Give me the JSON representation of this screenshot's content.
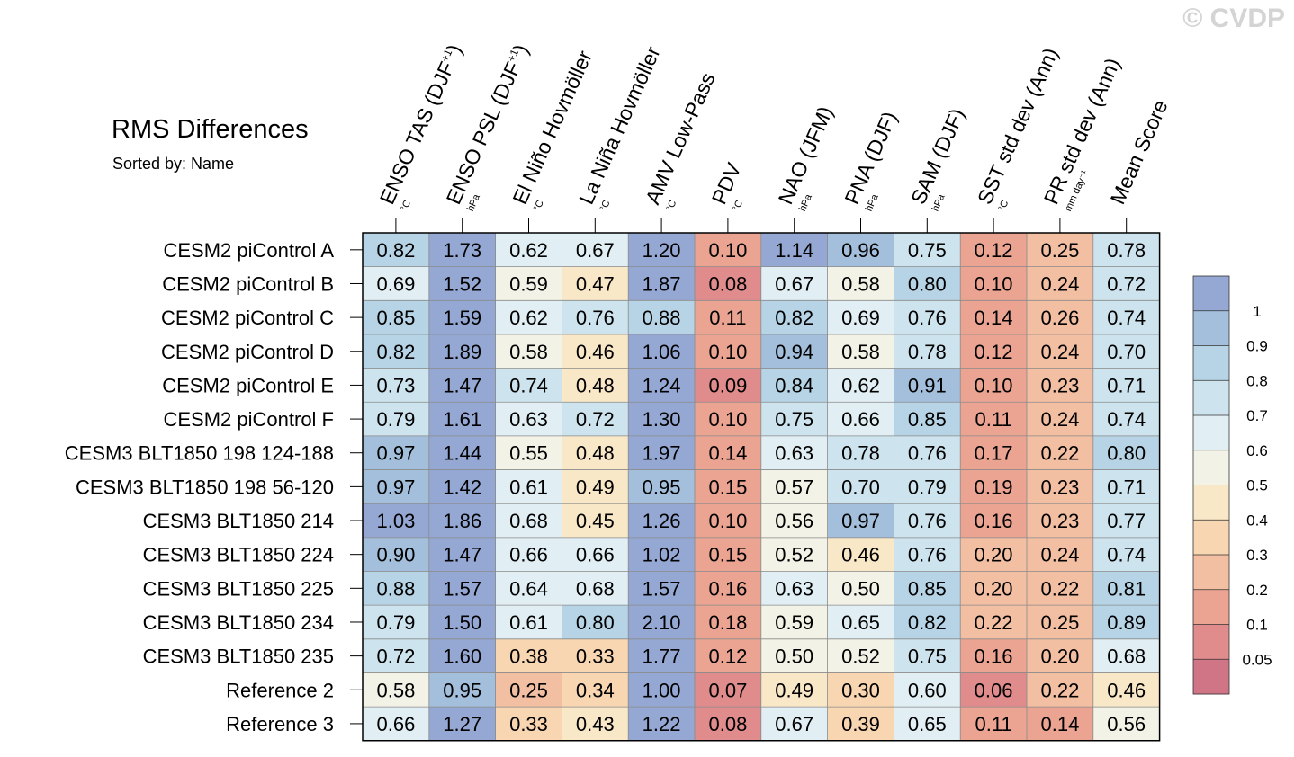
{
  "watermark": "© CVDP",
  "chart_data": {
    "type": "heatmap",
    "title": "RMS Differences",
    "subtitle": "Sorted by: Name",
    "columns": [
      {
        "label": "ENSO TAS (DJF",
        "sup": "+1",
        "tail": ")",
        "unit": "°C"
      },
      {
        "label": "ENSO PSL (DJF",
        "sup": "+1",
        "tail": ")",
        "unit": "hPa"
      },
      {
        "label": "El Niño Hovmöller",
        "sup": "",
        "tail": "",
        "unit": "°C"
      },
      {
        "label": "La Niña Hovmöller",
        "sup": "",
        "tail": "",
        "unit": "°C"
      },
      {
        "label": "AMV Low-Pass",
        "sup": "",
        "tail": "",
        "unit": "°C"
      },
      {
        "label": "PDV",
        "sup": "",
        "tail": "",
        "unit": "°C"
      },
      {
        "label": "NAO (JFM)",
        "sup": "",
        "tail": "",
        "unit": "hPa"
      },
      {
        "label": "PNA (DJF)",
        "sup": "",
        "tail": "",
        "unit": "hPa"
      },
      {
        "label": "SAM (DJF)",
        "sup": "",
        "tail": "",
        "unit": "hPa"
      },
      {
        "label": "SST std dev (Ann)",
        "sup": "",
        "tail": "",
        "unit": "°C"
      },
      {
        "label": "PR std dev (Ann)",
        "sup": "",
        "tail": "",
        "unit": "mm day⁻¹"
      },
      {
        "label": "Mean Score",
        "sup": "",
        "tail": "",
        "unit": ""
      }
    ],
    "rows": [
      "CESM2 piControl A",
      "CESM2 piControl B",
      "CESM2 piControl C",
      "CESM2 piControl D",
      "CESM2 piControl E",
      "CESM2 piControl F",
      "CESM3 BLT1850 198 124-188",
      "CESM3 BLT1850 198 56-120",
      "CESM3 BLT1850 214",
      "CESM3 BLT1850 224",
      "CESM3 BLT1850 225",
      "CESM3 BLT1850 234",
      "CESM3 BLT1850 235",
      "Reference 2",
      "Reference 3"
    ],
    "values": [
      [
        "0.82",
        "1.73",
        "0.62",
        "0.67",
        "1.20",
        "0.10",
        "1.14",
        "0.96",
        "0.75",
        "0.12",
        "0.25",
        "0.78"
      ],
      [
        "0.69",
        "1.52",
        "0.59",
        "0.47",
        "1.87",
        "0.08",
        "0.67",
        "0.58",
        "0.80",
        "0.10",
        "0.24",
        "0.72"
      ],
      [
        "0.85",
        "1.59",
        "0.62",
        "0.76",
        "0.88",
        "0.11",
        "0.82",
        "0.69",
        "0.76",
        "0.14",
        "0.26",
        "0.74"
      ],
      [
        "0.82",
        "1.89",
        "0.58",
        "0.46",
        "1.06",
        "0.10",
        "0.94",
        "0.58",
        "0.78",
        "0.12",
        "0.24",
        "0.70"
      ],
      [
        "0.73",
        "1.47",
        "0.74",
        "0.48",
        "1.24",
        "0.09",
        "0.84",
        "0.62",
        "0.91",
        "0.10",
        "0.23",
        "0.71"
      ],
      [
        "0.79",
        "1.61",
        "0.63",
        "0.72",
        "1.30",
        "0.10",
        "0.75",
        "0.66",
        "0.85",
        "0.11",
        "0.24",
        "0.74"
      ],
      [
        "0.97",
        "1.44",
        "0.55",
        "0.48",
        "1.97",
        "0.14",
        "0.63",
        "0.78",
        "0.76",
        "0.17",
        "0.22",
        "0.80"
      ],
      [
        "0.97",
        "1.42",
        "0.61",
        "0.49",
        "0.95",
        "0.15",
        "0.57",
        "0.70",
        "0.79",
        "0.19",
        "0.23",
        "0.71"
      ],
      [
        "1.03",
        "1.86",
        "0.68",
        "0.45",
        "1.26",
        "0.10",
        "0.56",
        "0.97",
        "0.76",
        "0.16",
        "0.23",
        "0.77"
      ],
      [
        "0.90",
        "1.47",
        "0.66",
        "0.66",
        "1.02",
        "0.15",
        "0.52",
        "0.46",
        "0.76",
        "0.20",
        "0.24",
        "0.74"
      ],
      [
        "0.88",
        "1.57",
        "0.64",
        "0.68",
        "1.57",
        "0.16",
        "0.63",
        "0.50",
        "0.85",
        "0.20",
        "0.22",
        "0.81"
      ],
      [
        "0.79",
        "1.50",
        "0.61",
        "0.80",
        "2.10",
        "0.18",
        "0.59",
        "0.65",
        "0.82",
        "0.22",
        "0.25",
        "0.89"
      ],
      [
        "0.72",
        "1.60",
        "0.38",
        "0.33",
        "1.77",
        "0.12",
        "0.50",
        "0.52",
        "0.75",
        "0.16",
        "0.20",
        "0.68"
      ],
      [
        "0.58",
        "0.95",
        "0.25",
        "0.34",
        "1.00",
        "0.07",
        "0.49",
        "0.30",
        "0.60",
        "0.06",
        "0.22",
        "0.46"
      ],
      [
        "0.66",
        "1.27",
        "0.33",
        "0.43",
        "1.22",
        "0.08",
        "0.67",
        "0.39",
        "0.65",
        "0.11",
        "0.14",
        "0.56"
      ]
    ],
    "colorbar": {
      "labels": [
        "1",
        "0.9",
        "0.8",
        "0.7",
        "0.6",
        "0.5",
        "0.4",
        "0.3",
        "0.2",
        "0.1",
        "0.05"
      ],
      "thresholds": [
        0.05,
        0.1,
        0.2,
        0.3,
        0.4,
        0.5,
        0.6,
        0.7,
        0.8,
        0.9,
        1.0
      ],
      "colors": [
        "#d07585",
        "#e08c8c",
        "#eba492",
        "#f3bfa3",
        "#f8d6b2",
        "#f9e8c8",
        "#f2f2e6",
        "#e1eff4",
        "#cde3ed",
        "#b6d4e5",
        "#a3bfdb",
        "#95a8d3"
      ]
    }
  }
}
